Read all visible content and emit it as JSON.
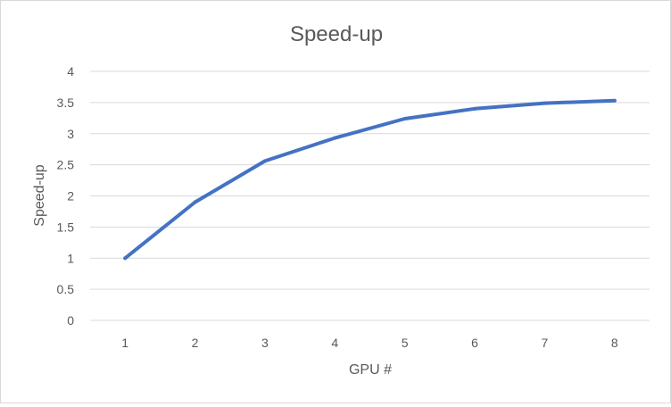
{
  "chart_data": {
    "type": "line",
    "title": "Speed-up",
    "xlabel": "GPU #",
    "ylabel": "Speed-up",
    "categories": [
      "1",
      "2",
      "3",
      "4",
      "5",
      "6",
      "7",
      "8"
    ],
    "series": [
      {
        "values": [
          1.0,
          1.9,
          2.56,
          2.93,
          3.24,
          3.4,
          3.49,
          3.53
        ]
      }
    ],
    "ylim": [
      0,
      4
    ],
    "yticks": [
      "0",
      "0.5",
      "1",
      "1.5",
      "2",
      "2.5",
      "3",
      "3.5",
      "4"
    ],
    "grid": "horizontal",
    "legend": "none",
    "colors": {
      "line": "#4472C4",
      "grid": "#d9d9d9",
      "text": "#595959",
      "border": "#d9d9d9"
    }
  }
}
